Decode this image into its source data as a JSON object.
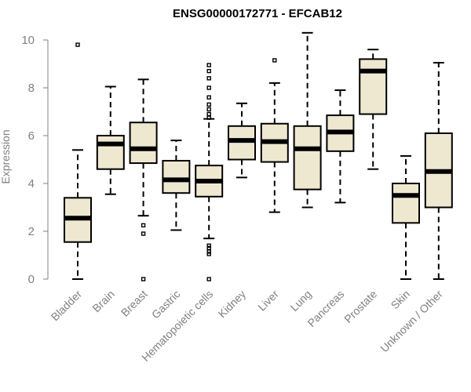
{
  "chart_data": {
    "type": "boxplot",
    "title": "ENSG00000172771 - EFCAB12",
    "xlabel": "",
    "ylabel": "Expression",
    "ylim": [
      0,
      10
    ],
    "yticks": [
      0,
      2,
      4,
      6,
      8,
      10
    ],
    "box_color": "#efe8d0",
    "categories": [
      "Bladder",
      "Brain",
      "Breast",
      "Gastric",
      "Hematopoietic cells",
      "Kidney",
      "Liver",
      "Lung",
      "Pancreas",
      "Prostate",
      "Skin",
      "Unknown / Other"
    ],
    "boxes": [
      {
        "min": 0.0,
        "q1": 1.55,
        "median": 2.55,
        "q3": 3.4,
        "max": 5.4,
        "outliers": [
          9.8
        ]
      },
      {
        "min": 3.55,
        "q1": 4.6,
        "median": 5.65,
        "q3": 6.0,
        "max": 8.05,
        "outliers": []
      },
      {
        "min": 2.65,
        "q1": 4.85,
        "median": 5.45,
        "q3": 6.55,
        "max": 8.35,
        "outliers": [
          2.25,
          1.9,
          0.0
        ]
      },
      {
        "min": 2.05,
        "q1": 3.6,
        "median": 4.15,
        "q3": 4.95,
        "max": 5.8,
        "outliers": []
      },
      {
        "min": 1.7,
        "q1": 3.45,
        "median": 4.1,
        "q3": 4.75,
        "max": 6.7,
        "outliers": [
          8.95,
          8.7,
          8.4,
          8.0,
          7.6,
          7.3,
          7.1,
          6.9,
          6.75,
          1.4,
          1.3,
          1.15,
          1.05,
          0.0
        ]
      },
      {
        "min": 4.25,
        "q1": 5.0,
        "median": 5.8,
        "q3": 6.4,
        "max": 7.35,
        "outliers": []
      },
      {
        "min": 2.8,
        "q1": 4.9,
        "median": 5.75,
        "q3": 6.5,
        "max": 8.2,
        "outliers": [
          9.15
        ]
      },
      {
        "min": 3.0,
        "q1": 3.75,
        "median": 5.45,
        "q3": 6.4,
        "max": 10.3,
        "outliers": []
      },
      {
        "min": 3.2,
        "q1": 5.35,
        "median": 6.15,
        "q3": 6.85,
        "max": 7.9,
        "outliers": []
      },
      {
        "min": 4.6,
        "q1": 6.9,
        "median": 8.7,
        "q3": 9.2,
        "max": 9.6,
        "outliers": []
      },
      {
        "min": 0.0,
        "q1": 2.35,
        "median": 3.5,
        "q3": 4.0,
        "max": 5.15,
        "outliers": []
      },
      {
        "min": 0.0,
        "q1": 3.0,
        "median": 4.5,
        "q3": 6.1,
        "max": 9.05,
        "outliers": []
      }
    ]
  }
}
